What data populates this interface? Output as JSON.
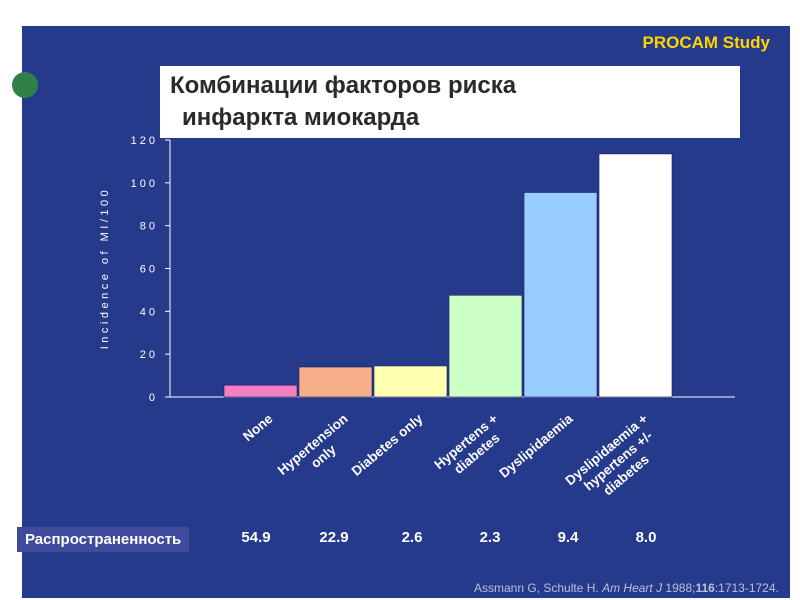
{
  "header": {
    "study_label": "PROCAM Study",
    "title_line1": "Комбинации факторов риска",
    "title_line2": "инфаркта миокарда"
  },
  "colors": {
    "background": "#263a8c",
    "accent_yellow": "#ffd400",
    "bullet_green": "#2e7f48"
  },
  "chart_data": {
    "type": "bar",
    "ylabel": "Incidence of MI/100",
    "ylim": [
      0,
      120
    ],
    "yticks": [
      0,
      20,
      40,
      60,
      80,
      100,
      120
    ],
    "categories": [
      "None",
      "Hypertension only",
      "Diabetes only",
      "Hypertens + diabetes",
      "Dyslipidaemia",
      "Dyslipidaemia + hypertens +/- diabetes"
    ],
    "category_lines": [
      [
        "None"
      ],
      [
        "Hypertension",
        "only"
      ],
      [
        "Diabetes only"
      ],
      [
        "Hypertens +",
        "diabetes"
      ],
      [
        "Dyslipidaemia"
      ],
      [
        "Dyslipidaemia +",
        "hypertens +/-",
        "diabetes"
      ]
    ],
    "values": [
      5.5,
      14,
      14.5,
      47.5,
      95.5,
      113.5
    ],
    "bar_colors": [
      "#f47fc3",
      "#f7b08a",
      "#ffffb0",
      "#ccffc4",
      "#99ccff",
      "#ffffff"
    ],
    "grid": false
  },
  "prevalence": {
    "label": "Распространенность",
    "values": [
      "54.9",
      "22.9",
      "2.6",
      "2.3",
      "9.4",
      "8.0"
    ]
  },
  "citation": {
    "authors": "Assmann G, Schulte H.",
    "journal": "Am Heart J",
    "year": "1988;",
    "volume": "116",
    "pages": ":1713-1724."
  }
}
